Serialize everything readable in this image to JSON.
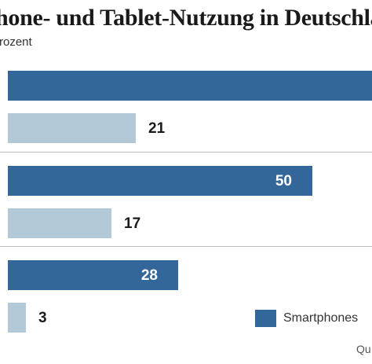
{
  "chart_data": {
    "type": "bar",
    "orientation": "horizontal",
    "title": "hone- und Tablet-Nutzung in Deutschland",
    "subtitle": "rozent",
    "groups": [
      {
        "bars": [
          {
            "series": "Smartphones",
            "value": 65,
            "label": ""
          },
          {
            "series": "Tablets",
            "value": 21,
            "label": "21"
          }
        ]
      },
      {
        "bars": [
          {
            "series": "Smartphones",
            "value": 50,
            "label": "50"
          },
          {
            "series": "Tablets",
            "value": 17,
            "label": "17"
          }
        ]
      },
      {
        "bars": [
          {
            "series": "Smartphones",
            "value": 28,
            "label": "28"
          },
          {
            "series": "Tablets",
            "value": 3,
            "label": "3"
          }
        ]
      }
    ],
    "legend": {
      "position": "bottom-right",
      "entries": [
        {
          "name": "Smartphones"
        }
      ]
    },
    "source": "Qu",
    "colors": {
      "Smartphones": "#336699",
      "Tablets": "#b3c8d6"
    },
    "grid": false
  }
}
